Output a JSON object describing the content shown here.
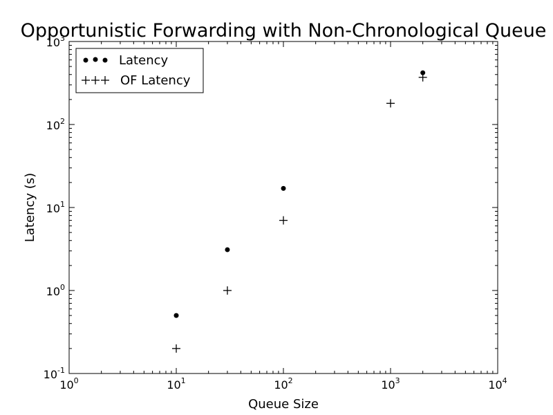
{
  "chart_data": {
    "type": "scatter",
    "title": "Opportunistic Forwarding with Non-Chronological Queue",
    "xlabel": "Queue Size",
    "ylabel": "Latency (s)",
    "xscale": "log",
    "yscale": "log",
    "xlim": [
      1,
      10000
    ],
    "ylim": [
      0.1,
      1000
    ],
    "x_ticks": [
      {
        "value": 1,
        "base": "10",
        "exp": "0"
      },
      {
        "value": 10,
        "base": "10",
        "exp": "1"
      },
      {
        "value": 100,
        "base": "10",
        "exp": "2"
      },
      {
        "value": 1000,
        "base": "10",
        "exp": "3"
      },
      {
        "value": 10000,
        "base": "10",
        "exp": "4"
      }
    ],
    "y_ticks": [
      {
        "value": 0.1,
        "base": "10",
        "exp": "-1"
      },
      {
        "value": 1,
        "base": "10",
        "exp": "0"
      },
      {
        "value": 10,
        "base": "10",
        "exp": "1"
      },
      {
        "value": 100,
        "base": "10",
        "exp": "2"
      },
      {
        "value": 1000,
        "base": "10",
        "exp": "3"
      }
    ],
    "grid": false,
    "legend_position": "top-left",
    "series": [
      {
        "name": "Latency",
        "marker": "circle",
        "color": "#000000",
        "points": [
          {
            "x": 10,
            "y": 0.5
          },
          {
            "x": 30,
            "y": 3.1
          },
          {
            "x": 100,
            "y": 17
          },
          {
            "x": 2000,
            "y": 420
          }
        ]
      },
      {
        "name": "OF Latency",
        "marker": "plus",
        "color": "#000000",
        "points": [
          {
            "x": 10,
            "y": 0.2
          },
          {
            "x": 30,
            "y": 1.0
          },
          {
            "x": 100,
            "y": 7.0
          },
          {
            "x": 1000,
            "y": 180
          },
          {
            "x": 2000,
            "y": 370
          }
        ]
      }
    ]
  }
}
